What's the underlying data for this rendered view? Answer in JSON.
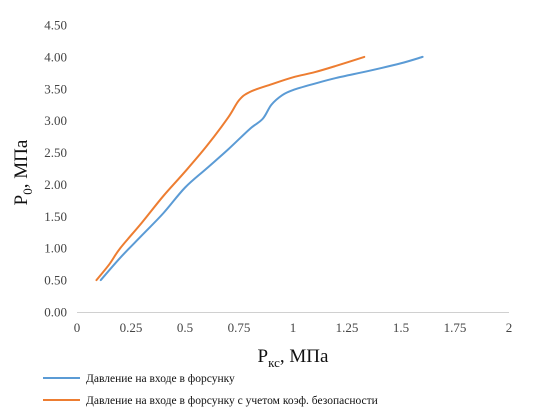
{
  "chart_data": {
    "type": "line",
    "title": "",
    "xlabel": {
      "base": "P",
      "sub": "кс",
      "rest": ", МПа"
    },
    "ylabel": {
      "base": "P",
      "sub": "0",
      "rest": ", МПа"
    },
    "xlim": [
      0,
      2
    ],
    "ylim": [
      0,
      4.5
    ],
    "x_ticks": [
      {
        "value": 0,
        "label": "0"
      },
      {
        "value": 0.25,
        "label": "0.25"
      },
      {
        "value": 0.5,
        "label": "0.5"
      },
      {
        "value": 0.75,
        "label": "0.75"
      },
      {
        "value": 1,
        "label": "1"
      },
      {
        "value": 1.25,
        "label": "1.25"
      },
      {
        "value": 1.5,
        "label": "1.5"
      },
      {
        "value": 1.75,
        "label": "1.75"
      },
      {
        "value": 2,
        "label": "2"
      }
    ],
    "y_ticks": [
      {
        "value": 0,
        "label": "0.00"
      },
      {
        "value": 0.5,
        "label": "0.50"
      },
      {
        "value": 1,
        "label": "1.00"
      },
      {
        "value": 1.5,
        "label": "1.50"
      },
      {
        "value": 2,
        "label": "2.00"
      },
      {
        "value": 2.5,
        "label": "2.50"
      },
      {
        "value": 3,
        "label": "3.00"
      },
      {
        "value": 3.5,
        "label": "3.50"
      },
      {
        "value": 4,
        "label": "4.00"
      },
      {
        "value": 4.5,
        "label": "4.50"
      }
    ],
    "grid": false,
    "legend_position": "bottom",
    "series": [
      {
        "name": "Давление на входе в форсунку",
        "color": "#5B9BD5",
        "points": [
          [
            0.11,
            0.5
          ],
          [
            0.2,
            0.85
          ],
          [
            0.3,
            1.2
          ],
          [
            0.4,
            1.55
          ],
          [
            0.5,
            1.95
          ],
          [
            0.6,
            2.25
          ],
          [
            0.7,
            2.55
          ],
          [
            0.8,
            2.87
          ],
          [
            0.86,
            3.03
          ],
          [
            0.9,
            3.25
          ],
          [
            0.95,
            3.4
          ],
          [
            1.0,
            3.48
          ],
          [
            1.1,
            3.58
          ],
          [
            1.2,
            3.67
          ],
          [
            1.35,
            3.78
          ],
          [
            1.5,
            3.9
          ],
          [
            1.6,
            4.0
          ]
        ]
      },
      {
        "name": "Давление на входе в форсунку с учетом коэф. безопасности",
        "color": "#ED7D31",
        "points": [
          [
            0.09,
            0.5
          ],
          [
            0.15,
            0.75
          ],
          [
            0.2,
            1.0
          ],
          [
            0.3,
            1.4
          ],
          [
            0.4,
            1.82
          ],
          [
            0.5,
            2.2
          ],
          [
            0.6,
            2.6
          ],
          [
            0.7,
            3.05
          ],
          [
            0.75,
            3.32
          ],
          [
            0.8,
            3.45
          ],
          [
            0.9,
            3.57
          ],
          [
            1.0,
            3.68
          ],
          [
            1.1,
            3.76
          ],
          [
            1.2,
            3.86
          ],
          [
            1.33,
            4.0
          ]
        ]
      }
    ]
  }
}
